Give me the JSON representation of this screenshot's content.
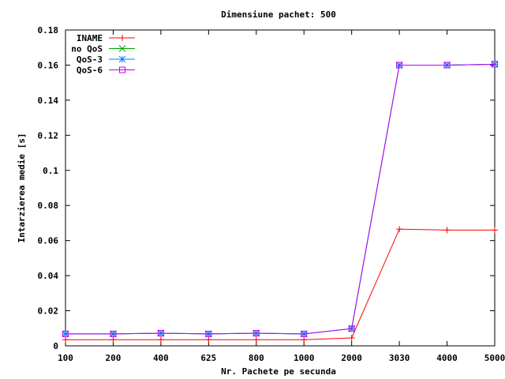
{
  "chart_data": {
    "type": "line",
    "title": "Dimensiune pachet: 500",
    "xlabel": "Nr. Pachete pe secunda",
    "ylabel": "Intarzierea medie [s]",
    "categories": [
      "100",
      "200",
      "400",
      "625",
      "800",
      "1000",
      "2000",
      "3030",
      "4000",
      "5000"
    ],
    "ylim": [
      0,
      0.18
    ],
    "yticks": [
      "0",
      "0.02",
      "0.04",
      "0.06",
      "0.08",
      "0.1",
      "0.12",
      "0.14",
      "0.16",
      "0.18"
    ],
    "grid": false,
    "legend_position": "top-left",
    "series": [
      {
        "name": "INAME",
        "color": "#ff0000",
        "marker": "plus",
        "values": [
          0.0035,
          0.0035,
          0.0035,
          0.0035,
          0.0035,
          0.0035,
          0.0045,
          0.0665,
          0.066,
          0.066
        ]
      },
      {
        "name": "no QoS",
        "color": "#00a000",
        "marker": "cross",
        "values": [
          0.0068,
          0.0068,
          0.0072,
          0.0068,
          0.0072,
          0.0068,
          0.0098,
          0.16,
          0.16,
          0.1605
        ]
      },
      {
        "name": "QoS-3",
        "color": "#0080ff",
        "marker": "star",
        "values": [
          0.0068,
          0.0068,
          0.0072,
          0.0068,
          0.0072,
          0.0068,
          0.0098,
          0.16,
          0.16,
          0.1605
        ]
      },
      {
        "name": "QoS-6",
        "color": "#c000ff",
        "marker": "square",
        "values": [
          0.0068,
          0.0068,
          0.0072,
          0.0068,
          0.0072,
          0.0068,
          0.0098,
          0.16,
          0.16,
          0.1605
        ]
      }
    ]
  }
}
